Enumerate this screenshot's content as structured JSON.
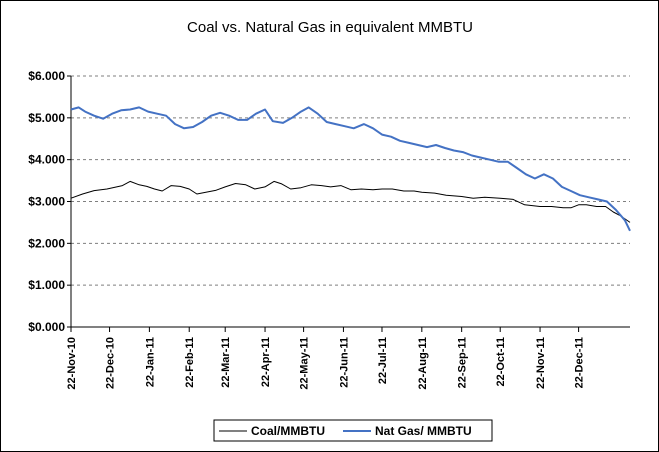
{
  "chart_data": {
    "type": "line",
    "title": "Coal vs. Natural Gas in equivalent MMBTU",
    "xlabel": "",
    "ylabel": "",
    "ylim": [
      0,
      6
    ],
    "y_ticks": [
      "$0.000",
      "$1.000",
      "$2.000",
      "$3.000",
      "$4.000",
      "$5.000",
      "$6.000"
    ],
    "x_ticks": [
      "22-Nov-10",
      "22-Dec-10",
      "22-Jan-11",
      "22-Feb-11",
      "22-Mar-11",
      "22-Apr-11",
      "22-May-11",
      "22-Jun-11",
      "22-Jul-11",
      "22-Aug-11",
      "22-Sep-11",
      "22-Oct-11",
      "22-Nov-11",
      "22-Dec-11"
    ],
    "x_range": [
      "2010-11-22",
      "2012-01-31"
    ],
    "grid": "horizontal dashed",
    "legend_position": "bottom",
    "series": [
      {
        "name": "Coal/MMBTU",
        "color": "#000000",
        "points": [
          [
            "2010-11-22",
            3.08
          ],
          [
            "2010-12-01",
            3.18
          ],
          [
            "2010-12-10",
            3.26
          ],
          [
            "2010-12-20",
            3.3
          ],
          [
            "2011-01-01",
            3.38
          ],
          [
            "2011-01-07",
            3.48
          ],
          [
            "2011-01-14",
            3.4
          ],
          [
            "2011-01-20",
            3.36
          ],
          [
            "2011-01-26",
            3.3
          ],
          [
            "2011-02-01",
            3.25
          ],
          [
            "2011-02-08",
            3.38
          ],
          [
            "2011-02-15",
            3.36
          ],
          [
            "2011-02-22",
            3.3
          ],
          [
            "2011-02-28",
            3.18
          ],
          [
            "2011-03-07",
            3.22
          ],
          [
            "2011-03-15",
            3.27
          ],
          [
            "2011-03-22",
            3.35
          ],
          [
            "2011-03-30",
            3.43
          ],
          [
            "2011-04-07",
            3.4
          ],
          [
            "2011-04-14",
            3.3
          ],
          [
            "2011-04-22",
            3.35
          ],
          [
            "2011-04-29",
            3.48
          ],
          [
            "2011-05-05",
            3.42
          ],
          [
            "2011-05-12",
            3.3
          ],
          [
            "2011-05-20",
            3.33
          ],
          [
            "2011-05-28",
            3.4
          ],
          [
            "2011-06-05",
            3.38
          ],
          [
            "2011-06-12",
            3.35
          ],
          [
            "2011-06-20",
            3.38
          ],
          [
            "2011-06-28",
            3.28
          ],
          [
            "2011-07-06",
            3.3
          ],
          [
            "2011-07-15",
            3.28
          ],
          [
            "2011-07-22",
            3.3
          ],
          [
            "2011-07-30",
            3.3
          ],
          [
            "2011-08-08",
            3.25
          ],
          [
            "2011-08-16",
            3.25
          ],
          [
            "2011-08-22",
            3.22
          ],
          [
            "2011-09-01",
            3.2
          ],
          [
            "2011-09-10",
            3.15
          ],
          [
            "2011-09-22",
            3.12
          ],
          [
            "2011-10-01",
            3.08
          ],
          [
            "2011-10-10",
            3.1
          ],
          [
            "2011-10-22",
            3.08
          ],
          [
            "2011-11-01",
            3.05
          ],
          [
            "2011-11-10",
            2.92
          ],
          [
            "2011-11-22",
            2.88
          ],
          [
            "2011-12-01",
            2.88
          ],
          [
            "2011-12-10",
            2.85
          ],
          [
            "2011-12-16",
            2.85
          ],
          [
            "2011-12-22",
            2.92
          ],
          [
            "2011-12-28",
            2.92
          ],
          [
            "2012-01-05",
            2.88
          ],
          [
            "2012-01-12",
            2.88
          ],
          [
            "2012-01-18",
            2.75
          ],
          [
            "2012-01-24",
            2.65
          ],
          [
            "2012-01-31",
            2.5
          ]
        ]
      },
      {
        "name": "Nat Gas/ MMBTU",
        "color": "#4472C4",
        "points": [
          [
            "2010-11-22",
            5.2
          ],
          [
            "2010-11-28",
            5.25
          ],
          [
            "2010-12-03",
            5.15
          ],
          [
            "2010-12-10",
            5.05
          ],
          [
            "2010-12-17",
            4.98
          ],
          [
            "2010-12-24",
            5.1
          ],
          [
            "2010-12-31",
            5.18
          ],
          [
            "2011-01-07",
            5.2
          ],
          [
            "2011-01-14",
            5.25
          ],
          [
            "2011-01-21",
            5.15
          ],
          [
            "2011-01-28",
            5.1
          ],
          [
            "2011-02-04",
            5.05
          ],
          [
            "2011-02-11",
            4.85
          ],
          [
            "2011-02-18",
            4.75
          ],
          [
            "2011-02-25",
            4.78
          ],
          [
            "2011-03-04",
            4.9
          ],
          [
            "2011-03-11",
            5.05
          ],
          [
            "2011-03-18",
            5.12
          ],
          [
            "2011-03-25",
            5.05
          ],
          [
            "2011-04-01",
            4.95
          ],
          [
            "2011-04-08",
            4.95
          ],
          [
            "2011-04-15",
            5.1
          ],
          [
            "2011-04-22",
            5.2
          ],
          [
            "2011-04-28",
            4.92
          ],
          [
            "2011-05-06",
            4.88
          ],
          [
            "2011-05-13",
            5.0
          ],
          [
            "2011-05-20",
            5.15
          ],
          [
            "2011-05-26",
            5.25
          ],
          [
            "2011-06-02",
            5.1
          ],
          [
            "2011-06-09",
            4.9
          ],
          [
            "2011-06-16",
            4.85
          ],
          [
            "2011-06-23",
            4.8
          ],
          [
            "2011-06-30",
            4.75
          ],
          [
            "2011-07-08",
            4.85
          ],
          [
            "2011-07-15",
            4.75
          ],
          [
            "2011-07-22",
            4.6
          ],
          [
            "2011-07-29",
            4.55
          ],
          [
            "2011-08-05",
            4.45
          ],
          [
            "2011-08-12",
            4.4
          ],
          [
            "2011-08-19",
            4.35
          ],
          [
            "2011-08-26",
            4.3
          ],
          [
            "2011-09-02",
            4.35
          ],
          [
            "2011-09-09",
            4.28
          ],
          [
            "2011-09-16",
            4.22
          ],
          [
            "2011-09-23",
            4.18
          ],
          [
            "2011-09-30",
            4.1
          ],
          [
            "2011-10-07",
            4.05
          ],
          [
            "2011-10-14",
            4.0
          ],
          [
            "2011-10-21",
            3.95
          ],
          [
            "2011-10-28",
            3.95
          ],
          [
            "2011-11-04",
            3.8
          ],
          [
            "2011-11-11",
            3.65
          ],
          [
            "2011-11-18",
            3.55
          ],
          [
            "2011-11-25",
            3.65
          ],
          [
            "2011-12-02",
            3.55
          ],
          [
            "2011-12-09",
            3.35
          ],
          [
            "2011-12-16",
            3.25
          ],
          [
            "2011-12-23",
            3.15
          ],
          [
            "2011-12-30",
            3.1
          ],
          [
            "2012-01-06",
            3.05
          ],
          [
            "2012-01-13",
            3.0
          ],
          [
            "2012-01-20",
            2.8
          ],
          [
            "2012-01-27",
            2.55
          ],
          [
            "2012-01-31",
            2.3
          ]
        ]
      }
    ]
  }
}
